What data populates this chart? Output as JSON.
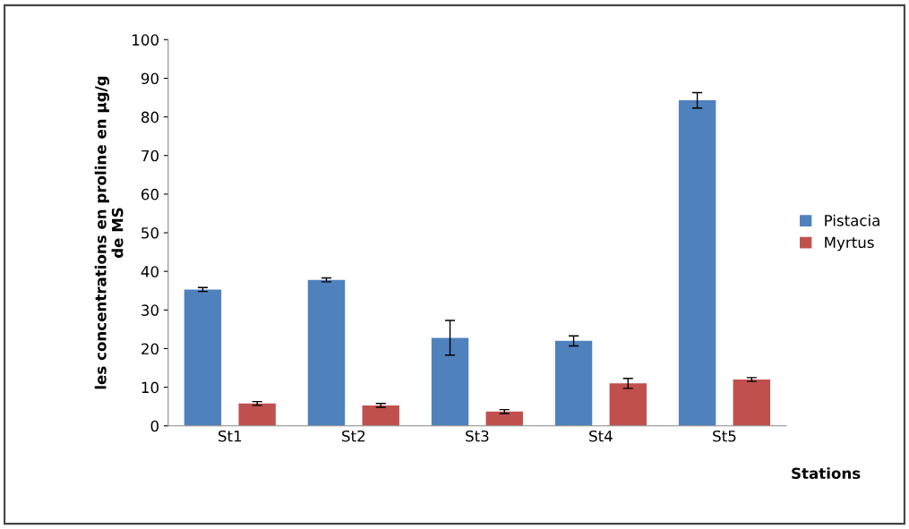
{
  "chart_data": {
    "type": "bar",
    "xlabel": "Stations",
    "ylabel": "les concentrations en proline en µg/g\nde MS",
    "categories": [
      "St1",
      "St2",
      "St3",
      "St4",
      "St5"
    ],
    "series": [
      {
        "name": "Pistacia",
        "color": "#4f81bd",
        "values": [
          35.3,
          37.8,
          22.8,
          22,
          84.3
        ],
        "errors": [
          0.5,
          0.5,
          4.5,
          1.3,
          2
        ]
      },
      {
        "name": "Myrtus",
        "color": "#c0504d",
        "values": [
          5.8,
          5.3,
          3.7,
          11,
          12
        ],
        "errors": [
          0.5,
          0.5,
          0.5,
          1.3,
          0.5
        ]
      }
    ],
    "ylim": [
      0,
      100
    ],
    "yticks": [
      0,
      10,
      20,
      30,
      40,
      50,
      60,
      70,
      80,
      90,
      100
    ],
    "grid": false,
    "legend": "right"
  }
}
